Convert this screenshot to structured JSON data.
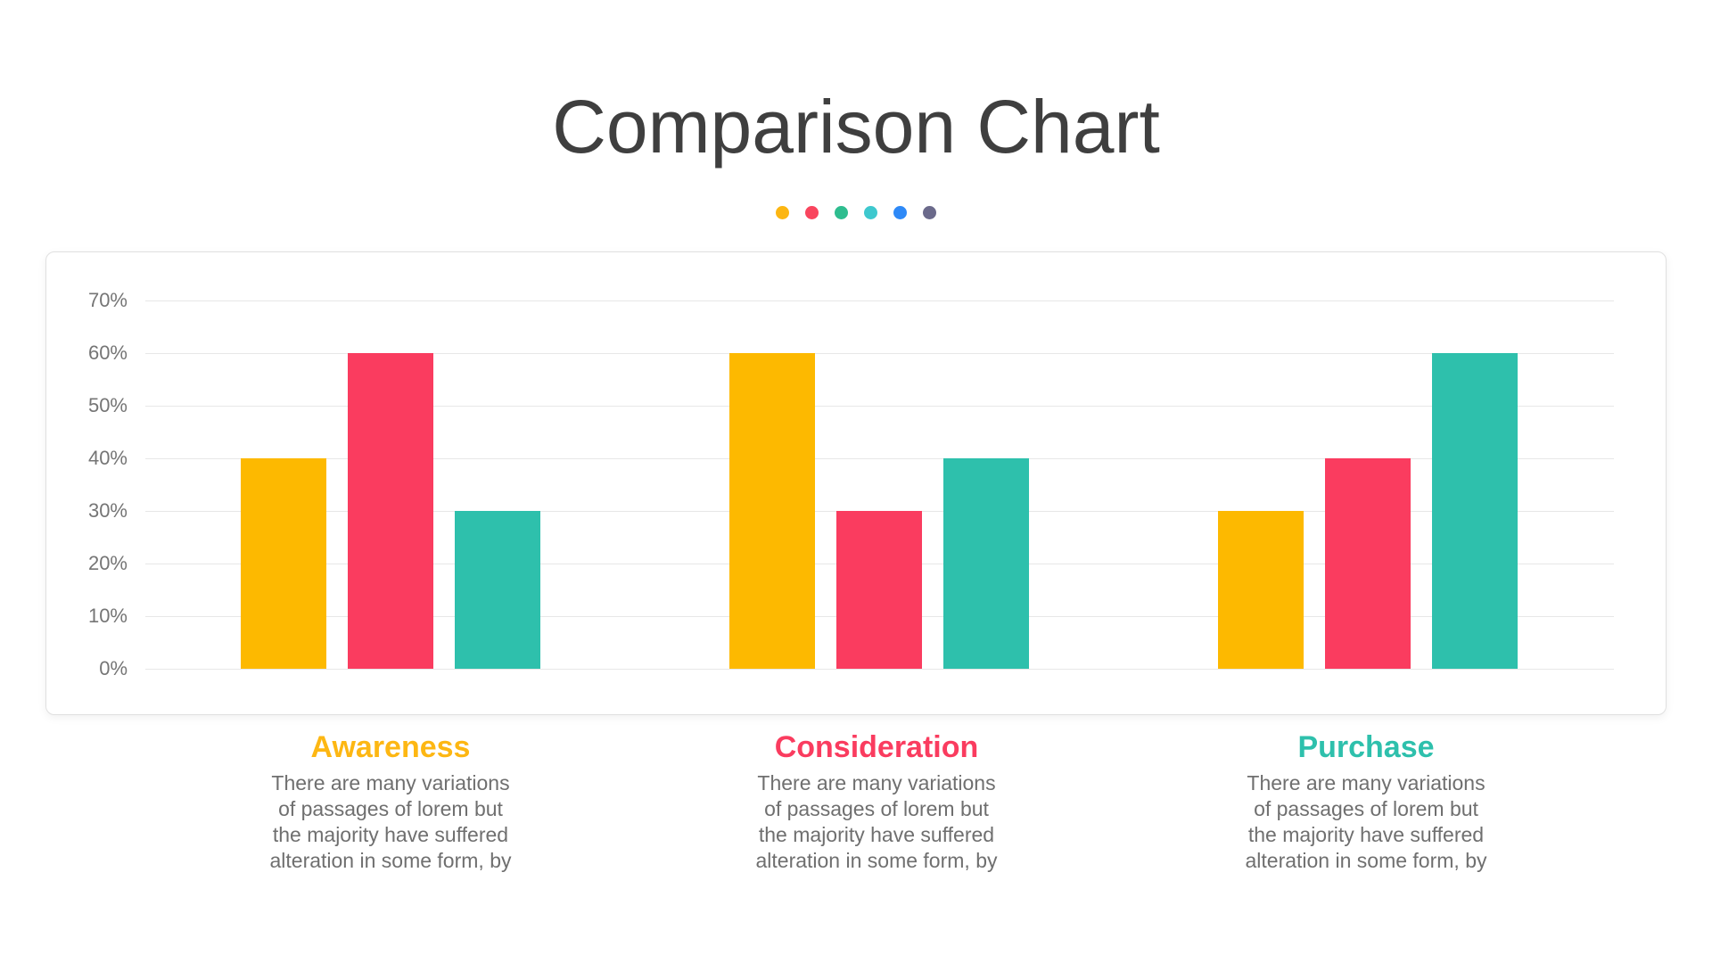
{
  "page": {
    "title": "Comparison Chart"
  },
  "decoration_dots": [
    {
      "name": "dot-amber",
      "color": "#fcb612"
    },
    {
      "name": "dot-pink",
      "color": "#f9455e"
    },
    {
      "name": "dot-green",
      "color": "#2ebd8f"
    },
    {
      "name": "dot-cyan",
      "color": "#3ec8ce"
    },
    {
      "name": "dot-blue",
      "color": "#2e89f7"
    },
    {
      "name": "dot-purple",
      "color": "#6b6a8b"
    }
  ],
  "chart_data": {
    "type": "bar",
    "title": "Comparison Chart",
    "categories": [
      "Awareness",
      "Consideration",
      "Purchase"
    ],
    "series": [
      {
        "name": "amber-series",
        "color": "#fdb900",
        "values": [
          40,
          60,
          30
        ]
      },
      {
        "name": "pink-series",
        "color": "#fa3c5f",
        "values": [
          60,
          30,
          40
        ]
      },
      {
        "name": "teal-series",
        "color": "#2ec0ac",
        "values": [
          30,
          40,
          60
        ]
      }
    ],
    "xlabel": "",
    "ylabel": "",
    "ylim": [
      0,
      70
    ],
    "yticks": [
      "70%",
      "60%",
      "50%",
      "40%",
      "30%",
      "20%",
      "10%",
      "0%"
    ],
    "ytick_values": [
      70,
      60,
      50,
      40,
      30,
      20,
      10,
      0
    ],
    "grid": true,
    "legend_position": "none"
  },
  "sections": [
    {
      "heading": "Awareness",
      "color": "#fdb713",
      "description": "There are many variations\nof passages of lorem but\nthe majority have suffered\nalteration in some form, by"
    },
    {
      "heading": "Consideration",
      "color": "#fa3c5f",
      "description": "There are many variations\nof passages of lorem but\nthe majority have suffered\nalteration in some form, by"
    },
    {
      "heading": "Purchase",
      "color": "#2ec0ac",
      "description": "There are many variations\nof passages of lorem but\nthe majority have suffered\nalteration in some form, by"
    }
  ]
}
